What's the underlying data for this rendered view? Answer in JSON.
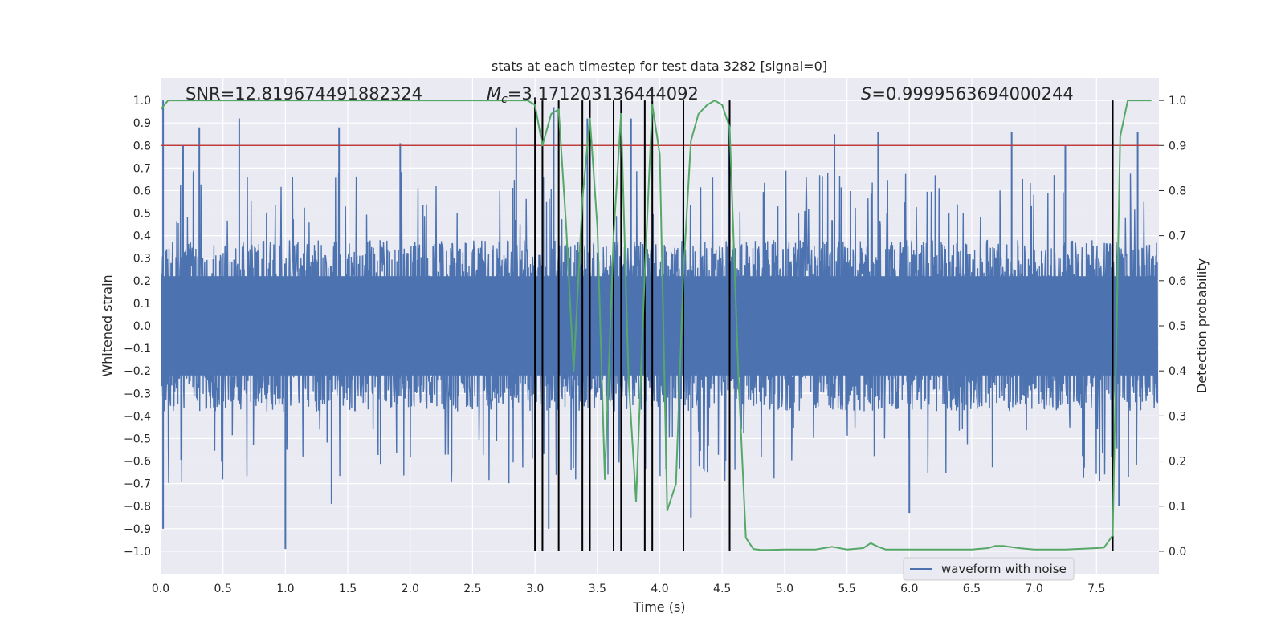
{
  "chart_data": {
    "type": "line",
    "title": "stats at each timestep for test data 3282 [signal=0]",
    "xlabel": "Time (s)",
    "ylabel_left": "Whitened strain",
    "ylabel_right": "Detection probability",
    "xlim": [
      0.0,
      8.0
    ],
    "ylim_left": [
      -1.1,
      1.1
    ],
    "ylim_right": [
      -0.05,
      1.05
    ],
    "x_ticks": [
      0.0,
      0.5,
      1.0,
      1.5,
      2.0,
      2.5,
      3.0,
      3.5,
      4.0,
      4.5,
      5.0,
      5.5,
      6.0,
      6.5,
      7.0,
      7.5
    ],
    "x_tick_labels": [
      "0.0",
      "0.5",
      "1.0",
      "1.5",
      "2.0",
      "2.5",
      "3.0",
      "3.5",
      "4.0",
      "4.5",
      "5.0",
      "5.5",
      "6.0",
      "6.5",
      "7.0",
      "7.5"
    ],
    "y_left_ticks": [
      1.0,
      0.9,
      0.8,
      0.7,
      0.6,
      0.5,
      0.4,
      0.3,
      0.2,
      0.1,
      0.0,
      -0.1,
      -0.2,
      -0.3,
      -0.4,
      -0.5,
      -0.6,
      -0.7,
      -0.8,
      -0.9,
      -1.0
    ],
    "y_left_tick_labels": [
      "1.0",
      "0.9",
      "0.8",
      "0.7",
      "0.6",
      "0.5",
      "0.4",
      "0.3",
      "0.2",
      "0.1",
      "0.0",
      "−0.1",
      "−0.2",
      "−0.3",
      "−0.4",
      "−0.5",
      "−0.6",
      "−0.7",
      "−0.8",
      "−0.9",
      "−1.0"
    ],
    "y_right_ticks": [
      1.0,
      0.9,
      0.8,
      0.7,
      0.6,
      0.5,
      0.4,
      0.3,
      0.2,
      0.1,
      0.0
    ],
    "y_right_tick_labels": [
      "1.0",
      "0.9",
      "0.8",
      "0.7",
      "0.6",
      "0.5",
      "0.4",
      "0.3",
      "0.2",
      "0.1",
      "0.0"
    ],
    "annotations": {
      "snr": "SNR=12.819674491882324",
      "mc_symbol": "M",
      "mc_subscript": "c",
      "mc_value": "=3.171203136444092",
      "s_symbol": "S",
      "s_value": "=0.9999563694000244"
    },
    "threshold": {
      "y": 0.9,
      "axis": "right",
      "color": "#c03d3e"
    },
    "vertical_lines": [
      3.0,
      3.06,
      3.19,
      3.38,
      3.44,
      3.63,
      3.69,
      3.88,
      3.94,
      4.19,
      4.56,
      7.63
    ],
    "vertical_line_range": [
      -1.0,
      1.0
    ],
    "series": [
      {
        "name": "waveform with noise",
        "axis": "left",
        "color": "#4c72b0",
        "kind": "dense-noise",
        "envelope_typical": [
          -0.45,
          0.45
        ],
        "peaks": [
          {
            "x": 0.02,
            "y": 1.0
          },
          {
            "x": 0.02,
            "y": -0.9
          },
          {
            "x": 0.18,
            "y": 0.8
          },
          {
            "x": 0.31,
            "y": 0.88
          },
          {
            "x": 0.63,
            "y": 0.92
          },
          {
            "x": 1.0,
            "y": -0.99
          },
          {
            "x": 1.43,
            "y": 0.88
          },
          {
            "x": 1.37,
            "y": -0.79
          },
          {
            "x": 1.92,
            "y": 0.81
          },
          {
            "x": 2.85,
            "y": 0.88
          },
          {
            "x": 3.15,
            "y": 0.97
          },
          {
            "x": 3.11,
            "y": -0.9
          },
          {
            "x": 3.42,
            "y": 0.92
          },
          {
            "x": 3.77,
            "y": 0.92
          },
          {
            "x": 4.25,
            "y": -0.85
          },
          {
            "x": 4.55,
            "y": 0.92
          },
          {
            "x": 5.4,
            "y": 0.85
          },
          {
            "x": 5.75,
            "y": 0.86
          },
          {
            "x": 6.0,
            "y": -0.83
          },
          {
            "x": 6.82,
            "y": 0.86
          },
          {
            "x": 7.25,
            "y": 0.8
          },
          {
            "x": 7.68,
            "y": -0.8
          },
          {
            "x": 7.83,
            "y": 0.86
          }
        ]
      },
      {
        "name": "detection probability",
        "axis": "right",
        "color": "#55a868",
        "x": [
          0.0,
          0.06,
          0.12,
          0.5,
          1.0,
          1.5,
          2.0,
          2.5,
          2.8,
          2.94,
          3.0,
          3.06,
          3.13,
          3.19,
          3.25,
          3.31,
          3.38,
          3.44,
          3.5,
          3.56,
          3.63,
          3.69,
          3.75,
          3.81,
          3.88,
          3.94,
          4.0,
          4.06,
          4.13,
          4.19,
          4.25,
          4.31,
          4.38,
          4.44,
          4.5,
          4.56,
          4.63,
          4.69,
          4.75,
          4.81,
          4.88,
          5.0,
          5.25,
          5.38,
          5.5,
          5.63,
          5.69,
          5.75,
          5.81,
          5.88,
          6.0,
          6.25,
          6.5,
          6.63,
          6.69,
          6.75,
          6.88,
          7.0,
          7.25,
          7.5,
          7.56,
          7.63,
          7.69,
          7.75,
          7.81,
          7.94
        ],
        "y": [
          0.98,
          1.0,
          1.0,
          1.0,
          1.0,
          1.0,
          1.0,
          1.0,
          1.0,
          1.0,
          0.99,
          0.9,
          0.97,
          0.98,
          0.72,
          0.4,
          0.78,
          0.96,
          0.72,
          0.16,
          0.7,
          0.97,
          0.38,
          0.11,
          0.62,
          0.99,
          0.88,
          0.09,
          0.15,
          0.62,
          0.91,
          0.97,
          0.99,
          1.0,
          0.99,
          0.94,
          0.39,
          0.03,
          0.005,
          0.003,
          0.003,
          0.004,
          0.004,
          0.01,
          0.004,
          0.007,
          0.018,
          0.01,
          0.004,
          0.004,
          0.004,
          0.004,
          0.004,
          0.007,
          0.012,
          0.012,
          0.007,
          0.004,
          0.004,
          0.007,
          0.008,
          0.035,
          0.92,
          1.0,
          1.0,
          1.0
        ]
      }
    ],
    "legend": {
      "position": "lower-right",
      "entries": [
        {
          "label": "waveform with noise",
          "color": "#4c72b0"
        }
      ]
    }
  }
}
